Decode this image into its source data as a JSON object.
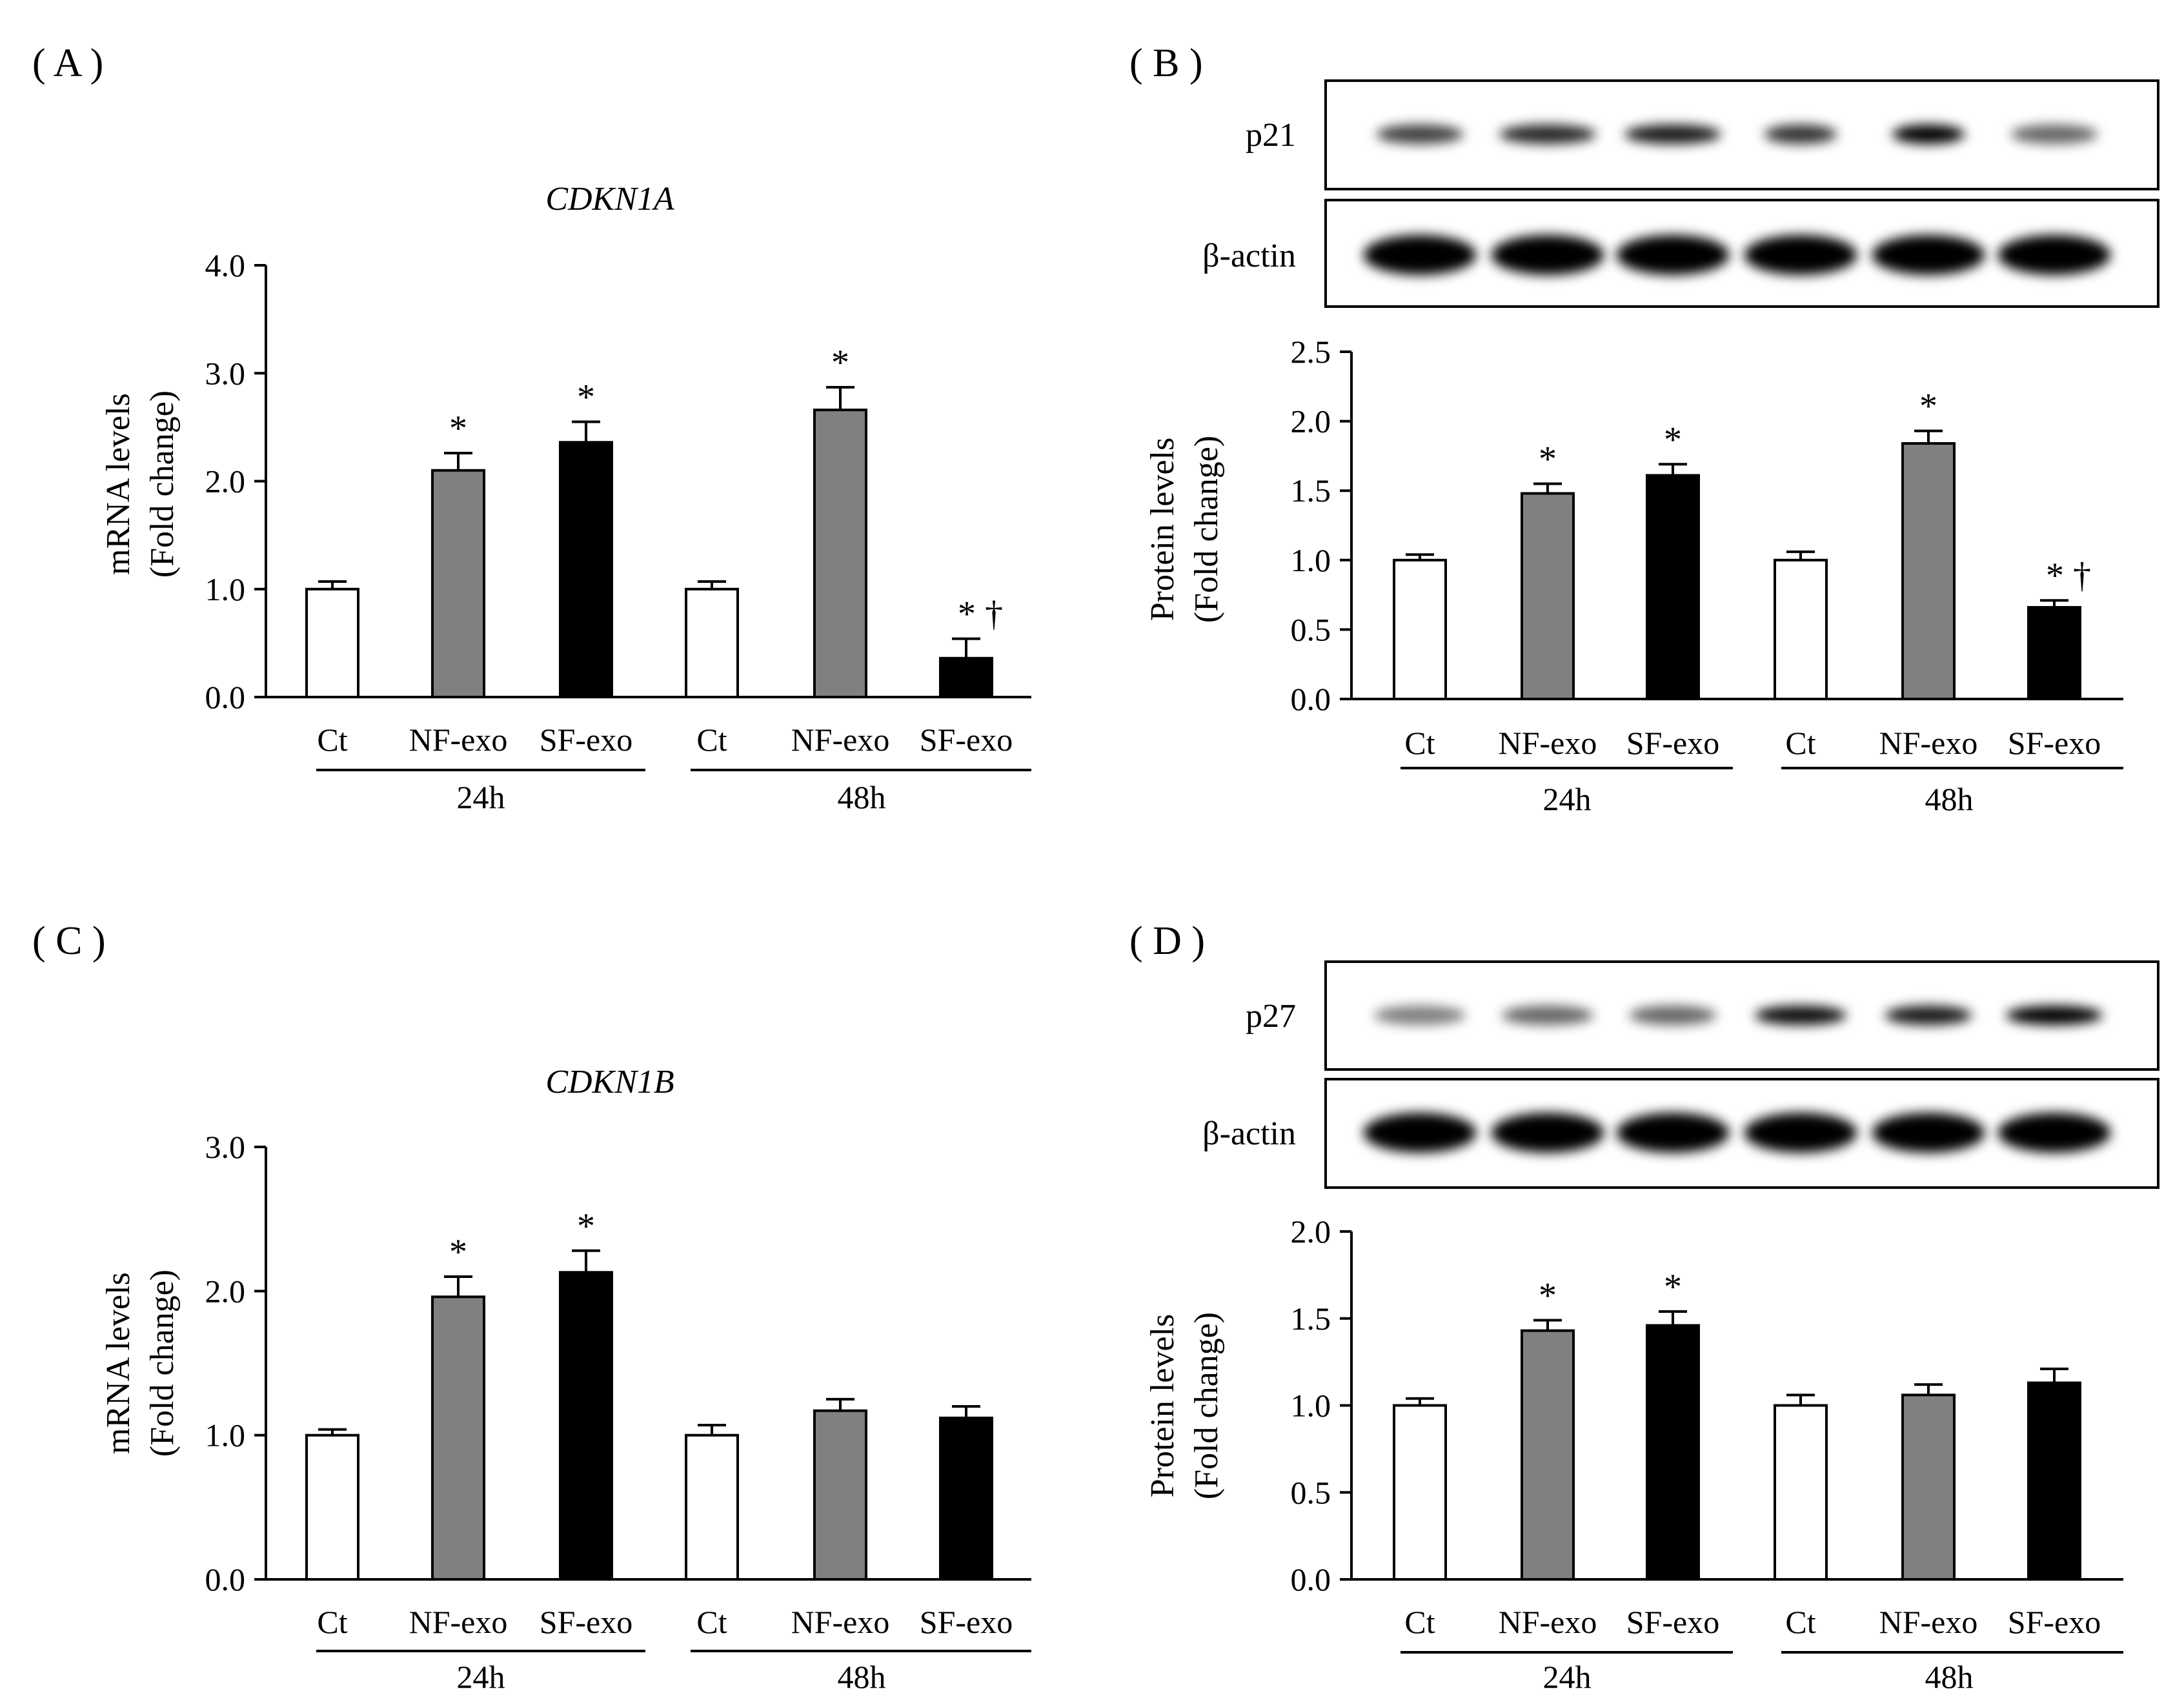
{
  "colors": {
    "Ct": "#ffffff",
    "NF-exo": "#808080",
    "SF-exo": "#000000",
    "axis": "#000000"
  },
  "chart_data": [
    {
      "panel_label": "( A )",
      "type": "bar",
      "title": "CDKN1A",
      "ylabel_lines": [
        "mRNA levels",
        "(Fold change)"
      ],
      "ylim": [
        0,
        4
      ],
      "yticks": [
        "0.0",
        "1.0",
        "2.0",
        "3.0",
        "4.0"
      ],
      "categories": [
        "Ct",
        "NF-exo",
        "SF-exo",
        "Ct",
        "NF-exo",
        "SF-exo"
      ],
      "groups": [
        "24h",
        "48h"
      ],
      "values": [
        1.0,
        2.1,
        2.36,
        1.0,
        2.66,
        0.36
      ],
      "errors": [
        0.07,
        0.16,
        0.19,
        0.07,
        0.21,
        0.18
      ],
      "annotations": [
        "",
        "*",
        "*",
        "",
        "*",
        "* †"
      ]
    },
    {
      "panel_label": "( B )",
      "type": "bar",
      "title": "",
      "ylabel_lines": [
        "Protein levels",
        "(Fold change)"
      ],
      "ylim": [
        0,
        2.5
      ],
      "yticks": [
        "0.0",
        "0.5",
        "1.0",
        "1.5",
        "2.0",
        "2.5"
      ],
      "categories": [
        "Ct",
        "NF-exo",
        "SF-exo",
        "Ct",
        "NF-exo",
        "SF-exo"
      ],
      "groups": [
        "24h",
        "48h"
      ],
      "values": [
        1.0,
        1.48,
        1.61,
        1.0,
        1.84,
        0.66
      ],
      "errors": [
        0.04,
        0.07,
        0.08,
        0.06,
        0.09,
        0.05
      ],
      "annotations": [
        "",
        "*",
        "*",
        "",
        "*",
        "* †"
      ],
      "blots": [
        {
          "label": "p21",
          "bands": [
            {
              "intensity": 0.75,
              "width": 0.9
            },
            {
              "intensity": 0.85,
              "width": 1.0
            },
            {
              "intensity": 0.9,
              "width": 1.0
            },
            {
              "intensity": 0.8,
              "width": 0.75
            },
            {
              "intensity": 1.0,
              "width": 0.75
            },
            {
              "intensity": 0.6,
              "width": 0.9
            }
          ]
        },
        {
          "label": "β-actin",
          "bands": [
            {
              "intensity": 1.0,
              "width": 1.0
            },
            {
              "intensity": 1.0,
              "width": 1.0
            },
            {
              "intensity": 1.0,
              "width": 1.0
            },
            {
              "intensity": 1.0,
              "width": 1.0
            },
            {
              "intensity": 1.0,
              "width": 1.0
            },
            {
              "intensity": 1.0,
              "width": 1.0
            }
          ]
        }
      ]
    },
    {
      "panel_label": "( C )",
      "type": "bar",
      "title": "CDKN1B",
      "ylabel_lines": [
        "mRNA levels",
        "(Fold change)"
      ],
      "ylim": [
        0,
        3
      ],
      "yticks": [
        "0.0",
        "1.0",
        "2.0",
        "3.0"
      ],
      "categories": [
        "Ct",
        "NF-exo",
        "SF-exo",
        "Ct",
        "NF-exo",
        "SF-exo"
      ],
      "groups": [
        "24h",
        "48h"
      ],
      "values": [
        1.0,
        1.96,
        2.13,
        1.0,
        1.17,
        1.12
      ],
      "errors": [
        0.04,
        0.14,
        0.15,
        0.07,
        0.08,
        0.08
      ],
      "annotations": [
        "",
        "*",
        "*",
        "",
        "",
        ""
      ]
    },
    {
      "panel_label": "( D )",
      "type": "bar",
      "title": "",
      "ylabel_lines": [
        "Protein levels",
        "(Fold change)"
      ],
      "ylim": [
        0,
        2
      ],
      "yticks": [
        "0.0",
        "0.5",
        "1.0",
        "1.5",
        "2.0"
      ],
      "categories": [
        "Ct",
        "NF-exo",
        "SF-exo",
        "Ct",
        "NF-exo",
        "SF-exo"
      ],
      "groups": [
        "24h",
        "48h"
      ],
      "values": [
        1.0,
        1.43,
        1.46,
        1.0,
        1.06,
        1.13
      ],
      "errors": [
        0.04,
        0.06,
        0.08,
        0.06,
        0.06,
        0.08
      ],
      "annotations": [
        "",
        "*",
        "*",
        "",
        "",
        ""
      ],
      "blots": [
        {
          "label": "p27",
          "bands": [
            {
              "intensity": 0.5,
              "width": 0.95
            },
            {
              "intensity": 0.6,
              "width": 0.95
            },
            {
              "intensity": 0.6,
              "width": 0.9
            },
            {
              "intensity": 0.95,
              "width": 0.95
            },
            {
              "intensity": 0.9,
              "width": 0.9
            },
            {
              "intensity": 1.0,
              "width": 1.0
            }
          ]
        },
        {
          "label": "β-actin",
          "bands": [
            {
              "intensity": 1.0,
              "width": 1.0
            },
            {
              "intensity": 1.0,
              "width": 1.0
            },
            {
              "intensity": 1.0,
              "width": 1.0
            },
            {
              "intensity": 1.0,
              "width": 1.0
            },
            {
              "intensity": 1.0,
              "width": 1.0
            },
            {
              "intensity": 1.0,
              "width": 1.0
            }
          ]
        }
      ]
    }
  ]
}
